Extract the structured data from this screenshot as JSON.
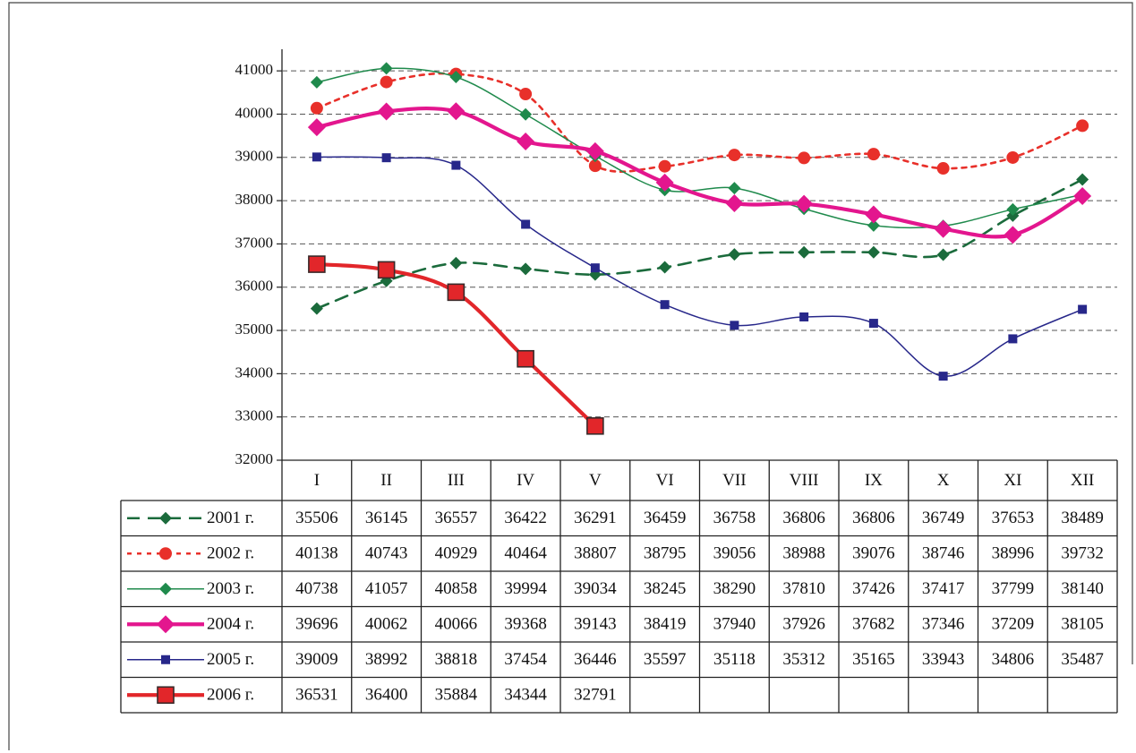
{
  "chart_data": {
    "type": "line",
    "categories": [
      "I",
      "II",
      "III",
      "IV",
      "V",
      "VI",
      "VII",
      "VIII",
      "IX",
      "X",
      "XI",
      "XII"
    ],
    "ylim": [
      32000,
      41500
    ],
    "yticks": [
      32000,
      33000,
      34000,
      35000,
      36000,
      37000,
      38000,
      39000,
      40000,
      41000
    ],
    "grid": true,
    "data_table": true,
    "series": [
      {
        "name": "2001 г.",
        "color": "#1b6b3c",
        "line_style": "dashed",
        "marker": "diamond",
        "line_weight": "medium",
        "values": [
          35506,
          36145,
          36557,
          36422,
          36291,
          36459,
          36758,
          36806,
          36806,
          36749,
          37653,
          38489
        ]
      },
      {
        "name": "2002 г.",
        "color": "#e8302a",
        "line_style": "dotted",
        "marker": "circle",
        "line_weight": "medium",
        "values": [
          40138,
          40743,
          40929,
          40464,
          38807,
          38795,
          39056,
          38988,
          39076,
          38746,
          38996,
          39732
        ]
      },
      {
        "name": "2003 г.",
        "color": "#1f8a4c",
        "line_style": "solid",
        "marker": "diamond",
        "line_weight": "thin",
        "values": [
          40738,
          41057,
          40858,
          39994,
          39034,
          38245,
          38290,
          37810,
          37426,
          37417,
          37799,
          38140
        ]
      },
      {
        "name": "2004 г.",
        "color": "#e3168e",
        "line_style": "solid",
        "marker": "diamond",
        "line_weight": "thick",
        "values": [
          39696,
          40062,
          40066,
          39368,
          39143,
          38419,
          37940,
          37926,
          37682,
          37346,
          37209,
          38105
        ]
      },
      {
        "name": "2005 г.",
        "color": "#27278a",
        "line_style": "solid",
        "marker": "square",
        "line_weight": "thin",
        "values": [
          39009,
          38992,
          38818,
          37454,
          36446,
          35597,
          35118,
          35312,
          35165,
          33943,
          34806,
          35487
        ]
      },
      {
        "name": "2006 г.",
        "color": "#e2262a",
        "line_style": "solid",
        "marker": "big-square",
        "line_weight": "thick",
        "values": [
          36531,
          36400,
          35884,
          34344,
          32791,
          null,
          null,
          null,
          null,
          null,
          null,
          null
        ]
      }
    ]
  }
}
